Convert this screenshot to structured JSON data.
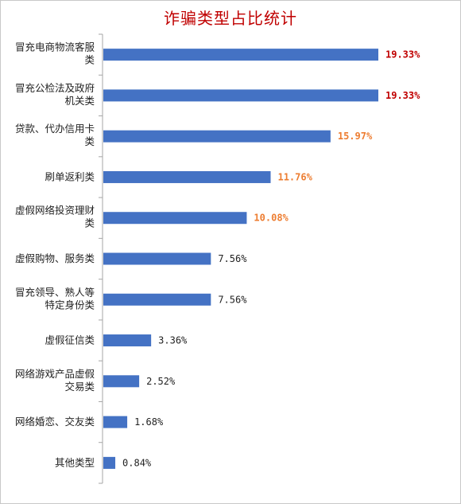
{
  "chart_data": {
    "type": "bar",
    "orientation": "horizontal",
    "title": "诈骗类型占比统计",
    "xlabel": "",
    "ylabel": "",
    "xlim": [
      0,
      20
    ],
    "grid": false,
    "legend": "none",
    "categories": [
      [
        "冒充电商物流客服",
        "类"
      ],
      [
        "冒充公检法及政府",
        "机关类"
      ],
      [
        "贷款、代办信用卡",
        "类"
      ],
      [
        "刷单返利类"
      ],
      [
        "虚假网络投资理财",
        "类"
      ],
      [
        "虚假购物、服务类"
      ],
      [
        "冒充领导、熟人等",
        "特定身份类"
      ],
      [
        "虚假征信类"
      ],
      [
        "网络游戏产品虚假",
        "交易类"
      ],
      [
        "网络婚恋、交友类"
      ],
      [
        "其他类型"
      ]
    ],
    "values": [
      19.33,
      19.33,
      15.97,
      11.76,
      10.08,
      7.56,
      7.56,
      3.36,
      2.52,
      1.68,
      0.84
    ],
    "value_labels": [
      "19.33%",
      "19.33%",
      "15.97%",
      "11.76%",
      "10.08%",
      "7.56%",
      "7.56%",
      "3.36%",
      "2.52%",
      "1.68%",
      "0.84%"
    ],
    "label_colors": [
      "#c00000",
      "#c00000",
      "#ed7d31",
      "#ed7d31",
      "#ed7d31",
      "#222222",
      "#222222",
      "#222222",
      "#222222",
      "#222222",
      "#222222"
    ],
    "label_bold": [
      true,
      true,
      true,
      true,
      true,
      false,
      false,
      false,
      false,
      false,
      false
    ],
    "bar_color": "#4472c4",
    "axis_color": "#a6a6a6"
  }
}
